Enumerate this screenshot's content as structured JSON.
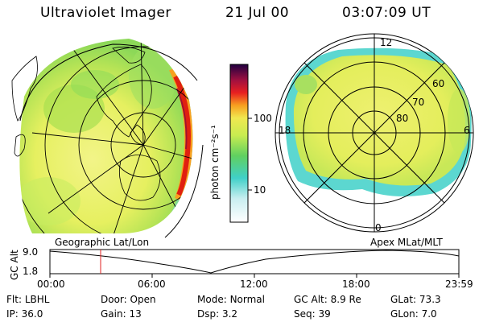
{
  "header": {
    "instrument": "Ultraviolet Imager",
    "date": "21 Jul 00",
    "time": "03:07:09 UT"
  },
  "colorbar": {
    "label": "photon cm⁻²s⁻¹",
    "ticks": [
      "100",
      "10"
    ]
  },
  "geo_map": {
    "caption": "Geographic Lat/Lon"
  },
  "apex_map": {
    "caption": "Apex MLat/MLT",
    "mlt_labels": [
      "12",
      "18",
      "6",
      "0"
    ],
    "lat_labels": [
      "60",
      "70",
      "80"
    ]
  },
  "altitude_plot": {
    "ylabel": "GC Alt",
    "y_ticks": [
      "9.0",
      "1.8"
    ],
    "time_ticks": [
      "00:00",
      "06:00",
      "12:00",
      "18:00",
      "23:59"
    ],
    "marker_time": "03:07:09"
  },
  "info": {
    "row1": [
      {
        "key": "Flt:",
        "value": "LBHL"
      },
      {
        "key": "Door:",
        "value": "Open"
      },
      {
        "key": "Mode:",
        "value": "Normal"
      },
      {
        "key": "GC Alt:",
        "value": "8.9 Re"
      },
      {
        "key": "GLat:",
        "value": "73.3"
      }
    ],
    "row2": [
      {
        "key": "IP:",
        "value": "36.0"
      },
      {
        "key": "Gain:",
        "value": "13"
      },
      {
        "key": "Dsp:",
        "value": "3.2"
      },
      {
        "key": "Seq:",
        "value": "39"
      },
      {
        "key": "GLon:",
        "value": "7.0"
      }
    ]
  },
  "colors": {
    "uv_yellow": "#e8f060",
    "uv_green": "#a8e050",
    "uv_cyan": "#40d0c8",
    "uv_red": "#e02010",
    "marker": "#e02020"
  }
}
